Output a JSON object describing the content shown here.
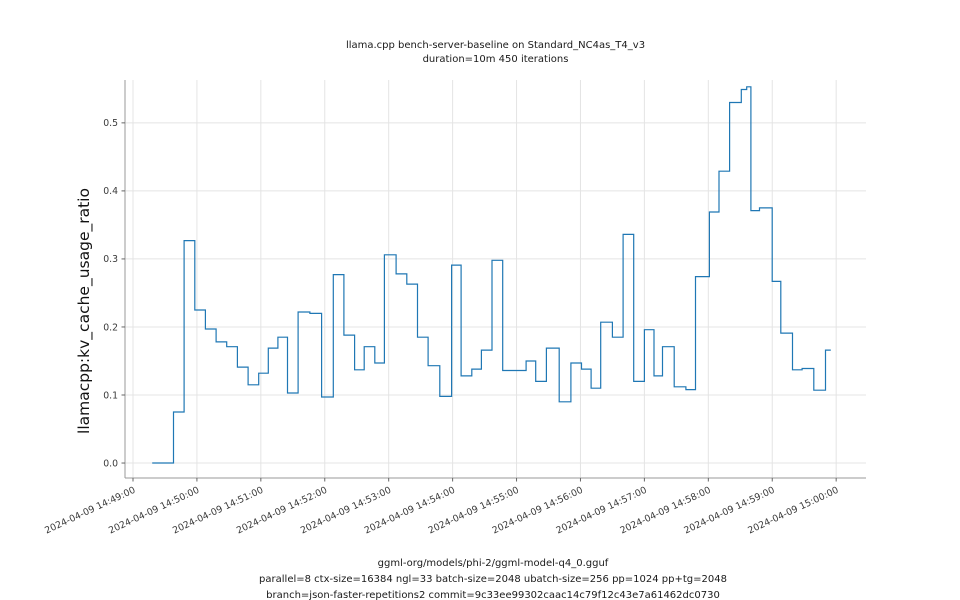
{
  "chart_data": {
    "type": "line",
    "step_mode": "post",
    "title_lines": [
      "llama.cpp bench-server-baseline on Standard_NC4as_T4_v3",
      "duration=10m 450 iterations"
    ],
    "ylabel": "llamacpp:kv_cache_usage_ratio",
    "xlabel_lines": [
      "ggml-org/models/phi-2/ggml-model-q4_0.gguf",
      "parallel=8 ctx-size=16384 ngl=33 batch-size=2048 ubatch-size=256 pp=1024 pp+tg=2048",
      "branch=json-faster-repetitions2 commit=9c33ee99302caac14c79f12c43e7a61462dc0730"
    ],
    "x_unit": "seconds since 2024-04-09 14:49:00",
    "x_tick_labels": [
      "2024-04-09 14:49:00",
      "2024-04-09 14:50:00",
      "2024-04-09 14:51:00",
      "2024-04-09 14:52:00",
      "2024-04-09 14:53:00",
      "2024-04-09 14:54:00",
      "2024-04-09 14:55:00",
      "2024-04-09 14:56:00",
      "2024-04-09 14:57:00",
      "2024-04-09 14:58:00",
      "2024-04-09 14:59:00",
      "2024-04-09 15:00:00"
    ],
    "x_tick_seconds": [
      0,
      60,
      120,
      180,
      240,
      300,
      360,
      420,
      480,
      540,
      600,
      660
    ],
    "y_ticks": [
      0.0,
      0.1,
      0.2,
      0.3,
      0.4,
      0.5
    ],
    "y_tick_labels": [
      "0.0",
      "0.1",
      "0.2",
      "0.3",
      "0.4",
      "0.5"
    ],
    "xlim_seconds": [
      -7.5,
      688
    ],
    "ylim": [
      -0.022,
      0.563
    ],
    "grid": true,
    "legend": "none",
    "colors": {
      "line": "#1f77b4",
      "grid": "#e4e4e4",
      "spine": "#999999",
      "tick": "#666666",
      "tick_label": "#3a3a3a"
    },
    "series": [
      {
        "name": "llamacpp:kv_cache_usage_ratio",
        "color": "#1f77b4",
        "points": [
          [
            18,
            0.0
          ],
          [
            38,
            0.075
          ],
          [
            48,
            0.327
          ],
          [
            58,
            0.225
          ],
          [
            68,
            0.197
          ],
          [
            78,
            0.178
          ],
          [
            88,
            0.171
          ],
          [
            98,
            0.141
          ],
          [
            108,
            0.115
          ],
          [
            118,
            0.132
          ],
          [
            127,
            0.169
          ],
          [
            136,
            0.185
          ],
          [
            145,
            0.103
          ],
          [
            155,
            0.222
          ],
          [
            166,
            0.22
          ],
          [
            177,
            0.097
          ],
          [
            188,
            0.277
          ],
          [
            198,
            0.188
          ],
          [
            208,
            0.137
          ],
          [
            217,
            0.171
          ],
          [
            227,
            0.147
          ],
          [
            236,
            0.306
          ],
          [
            247,
            0.278
          ],
          [
            257,
            0.263
          ],
          [
            267,
            0.185
          ],
          [
            277,
            0.143
          ],
          [
            288,
            0.098
          ],
          [
            299,
            0.291
          ],
          [
            308,
            0.128
          ],
          [
            318,
            0.138
          ],
          [
            327,
            0.166
          ],
          [
            337,
            0.298
          ],
          [
            347,
            0.136
          ],
          [
            369,
            0.15
          ],
          [
            378,
            0.12
          ],
          [
            388,
            0.169
          ],
          [
            400,
            0.09
          ],
          [
            411,
            0.147
          ],
          [
            421,
            0.138
          ],
          [
            430,
            0.11
          ],
          [
            439,
            0.207
          ],
          [
            450,
            0.185
          ],
          [
            460,
            0.336
          ],
          [
            470,
            0.12
          ],
          [
            480,
            0.196
          ],
          [
            489,
            0.128
          ],
          [
            497,
            0.171
          ],
          [
            508,
            0.112
          ],
          [
            519,
            0.108
          ],
          [
            528,
            0.274
          ],
          [
            541,
            0.369
          ],
          [
            550,
            0.429
          ],
          [
            560,
            0.53
          ],
          [
            571,
            0.549
          ],
          [
            576,
            0.553
          ],
          [
            580,
            0.371
          ],
          [
            588,
            0.375
          ],
          [
            600,
            0.267
          ],
          [
            608,
            0.191
          ],
          [
            619,
            0.137
          ],
          [
            628,
            0.139
          ],
          [
            639,
            0.107
          ],
          [
            650,
            0.166
          ],
          [
            655,
            0.166
          ]
        ]
      }
    ]
  }
}
